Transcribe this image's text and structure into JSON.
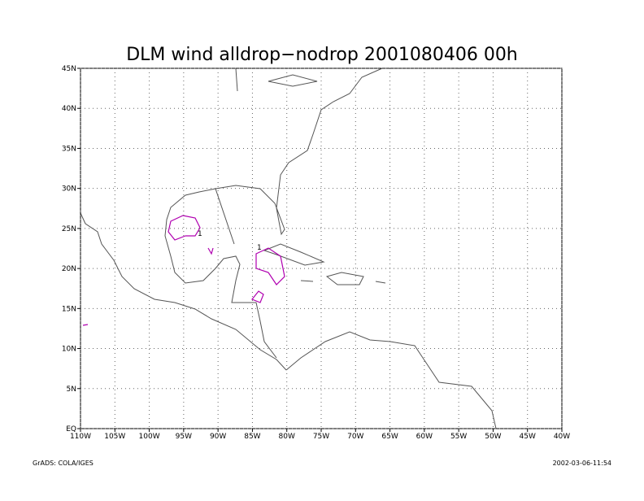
{
  "title": "DLM wind alldrop−nodrop 2001080406 00h",
  "xlim": [
    -110,
    -40
  ],
  "ylim": [
    0,
    45
  ],
  "xticks": [
    {
      "value": -110,
      "label": "110W"
    },
    {
      "value": -105,
      "label": "105W"
    },
    {
      "value": -100,
      "label": "100W"
    },
    {
      "value": -95,
      "label": "95W"
    },
    {
      "value": -90,
      "label": "90W"
    },
    {
      "value": -85,
      "label": "85W"
    },
    {
      "value": -80,
      "label": "80W"
    },
    {
      "value": -75,
      "label": "75W"
    },
    {
      "value": -70,
      "label": "70W"
    },
    {
      "value": -65,
      "label": "65W"
    },
    {
      "value": -60,
      "label": "60W"
    },
    {
      "value": -55,
      "label": "55W"
    },
    {
      "value": -50,
      "label": "50W"
    },
    {
      "value": -45,
      "label": "45W"
    },
    {
      "value": -40,
      "label": "40W"
    }
  ],
  "yticks": [
    {
      "value": 0,
      "label": "EQ"
    },
    {
      "value": 5,
      "label": "5N"
    },
    {
      "value": 10,
      "label": "10N"
    },
    {
      "value": 15,
      "label": "15N"
    },
    {
      "value": 20,
      "label": "20N"
    },
    {
      "value": 25,
      "label": "25N"
    },
    {
      "value": 30,
      "label": "30N"
    },
    {
      "value": 35,
      "label": "35N"
    },
    {
      "value": 40,
      "label": "40N"
    },
    {
      "value": 45,
      "label": "45N"
    }
  ],
  "contour_labels": [
    "1",
    "1"
  ],
  "footer": {
    "left": "GrADS: COLA/IGES",
    "right": "2002-03-06-11:54"
  }
}
